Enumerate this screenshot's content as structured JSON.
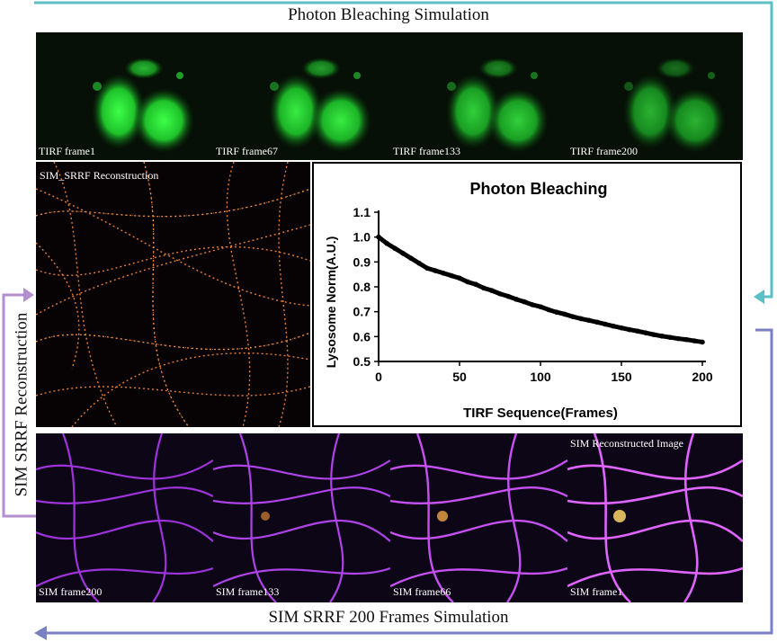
{
  "top_title": "Photon Bleaching Simulation",
  "bottom_title": "SIM SRRF 200 Frames Simulation",
  "side_label": "SIM SRRF Reconstruction",
  "tirf_frames": [
    "TIRF frame1",
    "TIRF frame67",
    "TIRF frame133",
    "TIRF frame200"
  ],
  "sim_frames": [
    "SIM frame200",
    "SIM frame133",
    "SIM frame66",
    "SIM frame1"
  ],
  "srrf_label": "SIM_SRRF Reconstruction",
  "sim_reconstructed_label": "SIM Reconstructed Image",
  "colors": {
    "arrow_top": "#5bbfc6",
    "arrow_bottom": "#7b7fc4",
    "arrow_left": "#b48fd0",
    "fluor_green": "#2aff3a",
    "filament_magenta": "#c040ff",
    "filament_orange": "#ff8c3a"
  },
  "chart_data": {
    "type": "line",
    "title": "Photon Bleaching",
    "xlabel": "TIRF Sequence(Frames)",
    "ylabel": "Lysosome Norm(A.U.)",
    "xlim": [
      0,
      200
    ],
    "ylim": [
      0.5,
      1.1
    ],
    "xticks": [
      "0",
      "50",
      "100",
      "150",
      "200"
    ],
    "yticks": [
      "0.5",
      "0.6",
      "0.7",
      "0.8",
      "0.9",
      "1.0",
      "1.1"
    ],
    "series": [
      {
        "name": "",
        "x": [
          0,
          5,
          10,
          15,
          20,
          25,
          30,
          35,
          40,
          45,
          50,
          55,
          60,
          65,
          70,
          75,
          80,
          85,
          90,
          95,
          100,
          105,
          110,
          115,
          120,
          125,
          130,
          135,
          140,
          145,
          150,
          155,
          160,
          165,
          170,
          175,
          180,
          185,
          190,
          195,
          200
        ],
        "values": [
          1.0,
          0.975,
          0.955,
          0.935,
          0.915,
          0.895,
          0.875,
          0.865,
          0.855,
          0.845,
          0.835,
          0.82,
          0.81,
          0.795,
          0.785,
          0.772,
          0.762,
          0.75,
          0.74,
          0.728,
          0.72,
          0.708,
          0.698,
          0.69,
          0.68,
          0.672,
          0.665,
          0.658,
          0.65,
          0.642,
          0.635,
          0.628,
          0.622,
          0.615,
          0.608,
          0.602,
          0.597,
          0.592,
          0.588,
          0.583,
          0.578
        ]
      }
    ]
  }
}
